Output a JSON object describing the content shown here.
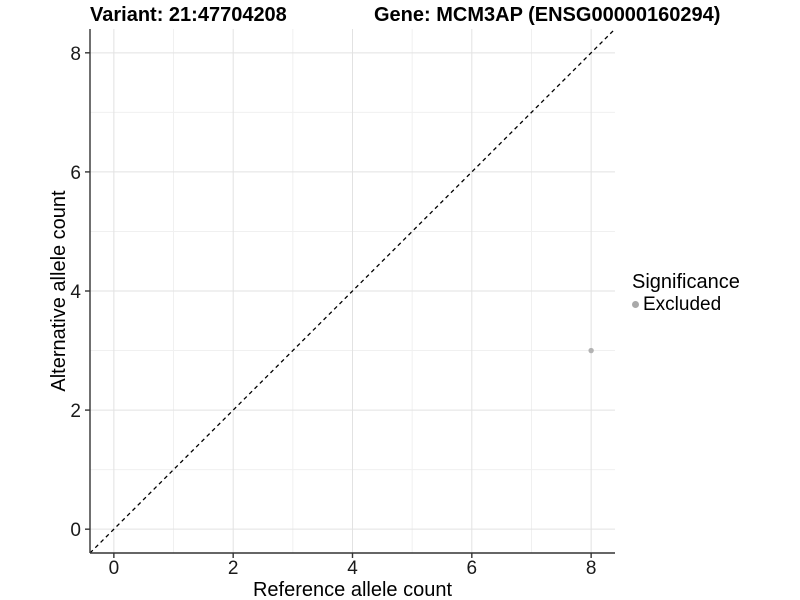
{
  "chart_data": {
    "type": "scatter",
    "title_left": "Variant: 21:47704208",
    "title_right": "Gene: MCM3AP (ENSG00000160294)",
    "xlabel": "Reference allele count",
    "ylabel": "Alternative allele count",
    "xlim": [
      -0.4,
      8.4
    ],
    "ylim": [
      -0.4,
      8.4
    ],
    "x_ticks": [
      0,
      2,
      4,
      6,
      8
    ],
    "y_ticks": [
      0,
      2,
      4,
      6,
      8
    ],
    "x_minor_ticks": [
      1,
      3,
      5,
      7
    ],
    "y_minor_ticks": [
      1,
      3,
      5,
      7
    ],
    "grid": true,
    "identity_line": {
      "type": "y=x",
      "style": "dashed",
      "color": "#000000"
    },
    "series": [
      {
        "name": "Excluded",
        "color": "#b3b3b3",
        "points": [
          {
            "x": 8,
            "y": 3
          }
        ]
      }
    ],
    "legend": {
      "position": "right",
      "title": "Significance",
      "items": [
        {
          "label": "Excluded",
          "color": "#a9a9a9"
        }
      ]
    },
    "colors": {
      "major_grid": "#e2e2e2",
      "minor_grid": "#f0f0f0",
      "axis_line": "#333333",
      "tick_label": "#1a1a1a",
      "point": "#b3b3b3"
    }
  }
}
